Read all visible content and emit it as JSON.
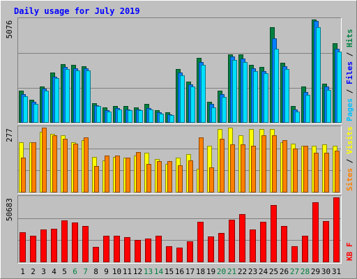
{
  "chart_data": {
    "type": "bar",
    "title": "Daily usage for July 2019",
    "categories": [
      "1",
      "2",
      "3",
      "4",
      "5",
      "6",
      "7",
      "8",
      "9",
      "10",
      "11",
      "12",
      "13",
      "14",
      "15",
      "16",
      "17",
      "18",
      "19",
      "20",
      "21",
      "22",
      "23",
      "24",
      "25",
      "26",
      "27",
      "28",
      "29",
      "30",
      "31"
    ],
    "weekend_days": [
      "6",
      "7",
      "13",
      "14",
      "20",
      "21",
      "27",
      "28"
    ],
    "panels": [
      {
        "id": "hits",
        "max_label": "5076",
        "ymax": 5076,
        "legend": [
          "Pages",
          "Files",
          "Hits"
        ],
        "series": [
          {
            "name": "Hits",
            "color": "#008040",
            "values": [
              1550,
              1100,
              1750,
              2450,
              2850,
              2800,
              2750,
              950,
              750,
              800,
              800,
              750,
              900,
              600,
              500,
              2600,
              2000,
              3150,
              1000,
              1550,
              3300,
              3300,
              2800,
              2700,
              4650,
              2900,
              800,
              1750,
              5000,
              1900,
              3850
            ]
          },
          {
            "name": "Files",
            "color": "#0080ff",
            "values": [
              1400,
              1000,
              1650,
              2250,
              2700,
              2650,
              2650,
              850,
              600,
              700,
              650,
              650,
              700,
              500,
              400,
              2450,
              1850,
              2950,
              900,
              1400,
              3200,
              3100,
              2650,
              2500,
              4100,
              2750,
              650,
              1500,
              4950,
              1750,
              3600
            ]
          },
          {
            "name": "Pages",
            "color": "#00e0ff",
            "values": [
              1300,
              900,
              1550,
              2150,
              2600,
              2550,
              2550,
              800,
              550,
              650,
              600,
              600,
              650,
              450,
              380,
              2300,
              1750,
              2800,
              750,
              1250,
              3050,
              2950,
              2500,
              2400,
              3600,
              2600,
              550,
              1350,
              4650,
              1600,
              3450
            ]
          }
        ]
      },
      {
        "id": "visits",
        "max_label": "277",
        "ymax": 277,
        "legend": [
          "Sites",
          "Visits"
        ],
        "series": [
          {
            "name": "Visits",
            "color": "#ffff00",
            "values": [
              210,
              210,
              255,
              245,
              240,
              210,
              220,
              150,
              135,
              150,
              145,
              155,
              165,
              140,
              120,
              145,
              160,
              100,
              195,
              265,
              270,
              240,
              265,
              265,
              265,
              210,
              205,
              195,
              195,
              200,
              195
            ]
          },
          {
            "name": "Sites",
            "color": "#ff8000",
            "values": [
              145,
              210,
              270,
              240,
              225,
              205,
              230,
              110,
              155,
              155,
              145,
              170,
              120,
              130,
              130,
              115,
              135,
              230,
              105,
              225,
              200,
              200,
              195,
              240,
              240,
              220,
              185,
              195,
              165,
              165,
              175
            ]
          }
        ]
      },
      {
        "id": "kbytes",
        "max_label": "50683",
        "ymax": 50683,
        "legend": [
          "KB F"
        ],
        "series": [
          {
            "name": "KB F",
            "color": "#ff0000",
            "values": [
              23000,
              20500,
              25000,
              25500,
              32000,
              30500,
              28000,
              11500,
              20500,
              20500,
              19000,
              17000,
              18000,
              20500,
              12500,
              11000,
              16000,
              31000,
              20000,
              22500,
              32500,
              37000,
              25000,
              31000,
              43500,
              27500,
              12500,
              20500,
              46000,
              31500,
              49500
            ]
          }
        ]
      }
    ]
  }
}
